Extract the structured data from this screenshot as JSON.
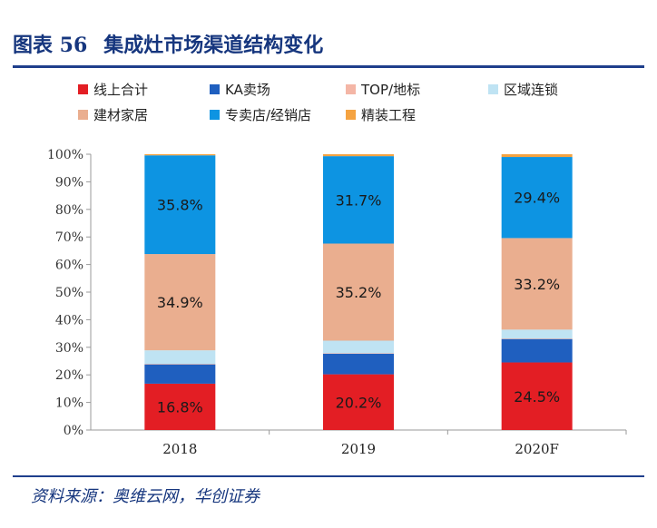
{
  "title": {
    "figure_label": "图表 56",
    "text": "集成灶市场渠道结构变化"
  },
  "source": "资料来源：奥维云网，华创证券",
  "chart_data": {
    "type": "bar",
    "stacked": true,
    "categories": [
      "2018",
      "2019",
      "2020F"
    ],
    "ylim": [
      0,
      100
    ],
    "yticks": [
      "0%",
      "10%",
      "20%",
      "30%",
      "40%",
      "50%",
      "60%",
      "70%",
      "80%",
      "90%",
      "100%"
    ],
    "legend_position": "top",
    "series": [
      {
        "name": "线上合计",
        "color": "#e31e24",
        "values": [
          16.8,
          20.2,
          24.5
        ],
        "labels": [
          "16.8%",
          "20.2%",
          "24.5%"
        ]
      },
      {
        "name": "KA卖场",
        "color": "#1f5fbf",
        "values": [
          7.0,
          7.5,
          8.5
        ]
      },
      {
        "name": "TOP/地标",
        "color": "#f4b6a6",
        "values": [
          0.2,
          0.2,
          0.2
        ]
      },
      {
        "name": "区域连锁",
        "color": "#bfe3f3",
        "values": [
          4.9,
          4.5,
          3.2
        ]
      },
      {
        "name": "建材家居",
        "color": "#eaae8f",
        "values": [
          34.9,
          35.2,
          33.2
        ],
        "labels": [
          "34.9%",
          "35.2%",
          "33.2%"
        ]
      },
      {
        "name": "专卖店/经销店",
        "color": "#0d94e2",
        "values": [
          35.8,
          31.7,
          29.4
        ],
        "labels": [
          "35.8%",
          "31.7%",
          "29.4%"
        ]
      },
      {
        "name": "精装工程",
        "color": "#f5a341",
        "values": [
          0.4,
          0.7,
          1.0
        ]
      }
    ]
  }
}
